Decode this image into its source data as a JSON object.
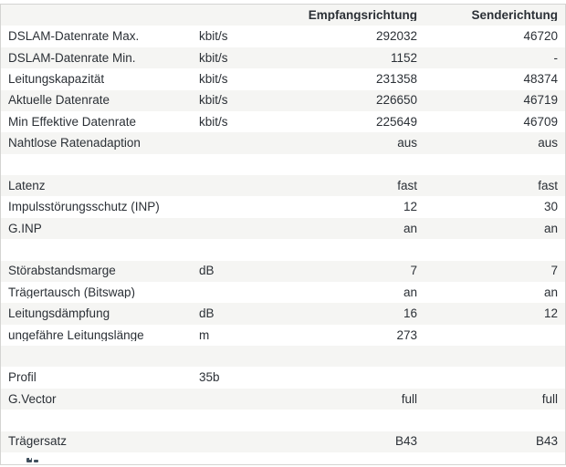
{
  "table": {
    "header": {
      "label": "",
      "unit": "",
      "rx": "Empfangsrichtung",
      "tx": "Senderichtung"
    },
    "rows": [
      {
        "label": "DSLAM-Datenrate Max.",
        "unit": "kbit/s",
        "rx": "292032",
        "tx": "46720"
      },
      {
        "label": "DSLAM-Datenrate Min.",
        "unit": "kbit/s",
        "rx": "1152",
        "tx": "-"
      },
      {
        "label": "Leitungskapazität",
        "unit": "kbit/s",
        "rx": "231358",
        "tx": "48374"
      },
      {
        "label": "Aktuelle Datenrate",
        "unit": "kbit/s",
        "rx": "226650",
        "tx": "46719"
      },
      {
        "label": "Min Effektive Datenrate",
        "unit": "kbit/s",
        "rx": "225649",
        "tx": "46709"
      },
      {
        "label": "Nahtlose Ratenadaption",
        "unit": "",
        "rx": "aus",
        "tx": "aus"
      },
      {
        "label": "",
        "unit": "",
        "rx": "",
        "tx": ""
      },
      {
        "label": "Latenz",
        "unit": "",
        "rx": "fast",
        "tx": "fast"
      },
      {
        "label": "Impulsstörungsschutz (INP)",
        "unit": "",
        "rx": "12",
        "tx": "30"
      },
      {
        "label": "G.INP",
        "unit": "",
        "rx": "an",
        "tx": "an"
      },
      {
        "label": "",
        "unit": "",
        "rx": "",
        "tx": ""
      },
      {
        "label": "Störabstandsmarge",
        "unit": "dB",
        "rx": "7",
        "tx": "7"
      },
      {
        "label": "Trägertausch (Bitswap)",
        "unit": "",
        "rx": "an",
        "tx": "an"
      },
      {
        "label": "Leitungsdämpfung",
        "unit": "dB",
        "rx": "16",
        "tx": "12"
      },
      {
        "label": "ungefähre Leitungslänge",
        "unit": "m",
        "rx": "273",
        "tx": ""
      },
      {
        "label": "",
        "unit": "",
        "rx": "",
        "tx": ""
      },
      {
        "label": "Profil",
        "unit": "35b",
        "rx": "",
        "tx": ""
      },
      {
        "label": "G.Vector",
        "unit": "",
        "rx": "full",
        "tx": "full"
      },
      {
        "label": "",
        "unit": "",
        "rx": "",
        "tx": ""
      },
      {
        "label": "Trägersatz",
        "unit": "",
        "rx": "B43",
        "tx": "B43"
      }
    ]
  },
  "colors": {
    "row_stripe": "#f5f5f3",
    "table_border": "#d4d4d2",
    "text": "#2b3036",
    "cutoff_element": "#41505e"
  }
}
